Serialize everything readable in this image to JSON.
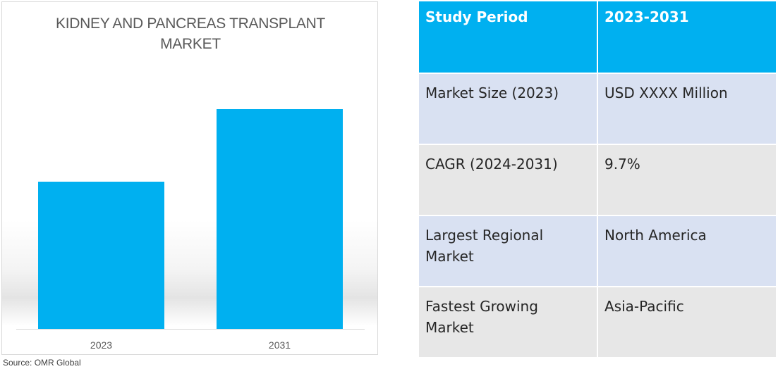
{
  "chart_data": {
    "type": "bar",
    "title": "KIDNEY AND PANCREAS TRANSPLANT MARKET",
    "title_lines": [
      "KIDNEY AND PANCREAS TRANSPLANT",
      "MARKET"
    ],
    "categories": [
      "2023",
      "2031"
    ],
    "values": [
      0.67,
      1.0
    ],
    "value_note": "relative bar heights; no numeric axis or data labels printed",
    "bar_color": "#00b0f0",
    "grid": false,
    "legend": "none"
  },
  "source": "Source: OMR Global",
  "table": {
    "header": [
      "Study Period",
      "2023-2031"
    ],
    "rows": [
      [
        "Market Size (2023)",
        "USD XXXX Million"
      ],
      [
        "CAGR (2024-2031)",
        "9.7%"
      ],
      [
        "Largest Regional Market",
        "North America"
      ],
      [
        "Fastest Growing Market",
        "Asia-Pacific"
      ]
    ]
  },
  "colors": {
    "accent": "#00b0f0",
    "row_blue": "#d9e1f2",
    "row_gray": "#e7e7e7"
  }
}
